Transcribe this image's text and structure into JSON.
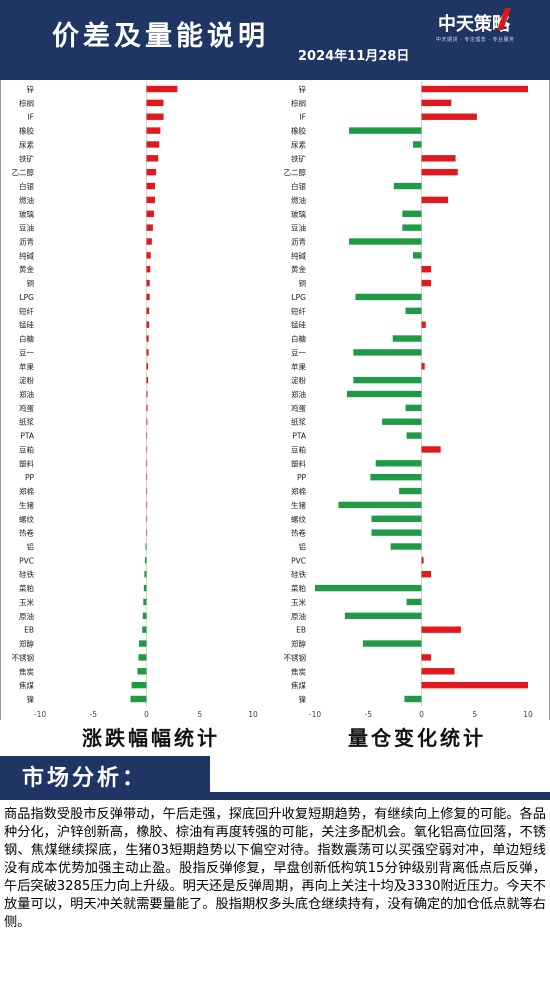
{
  "header": {
    "title": "价差及量能说明",
    "date": "2024年11月28日",
    "logo": "中天策略",
    "logo_sub": "中天期货 · 专注理念 · 专业服务"
  },
  "colors": {
    "up": "#e0191e",
    "down": "#1f9a45",
    "navy": "#1f3563"
  },
  "chart_data": [
    {
      "type": "bar",
      "orientation": "horizontal",
      "title": "涨跌幅幅统计",
      "xlim": [
        -10,
        10
      ],
      "xticks": [
        -10,
        -5,
        0,
        5,
        10
      ],
      "categories": [
        "锌",
        "棕榈",
        "IF",
        "橡胶",
        "尿素",
        "铁矿",
        "乙二醇",
        "白银",
        "燃油",
        "玻璃",
        "豆油",
        "沥青",
        "纯碱",
        "黄金",
        "铜",
        "LPG",
        "短纤",
        "锰硅",
        "白糖",
        "豆一",
        "苹果",
        "淀粉",
        "郑油",
        "鸡蛋",
        "纸浆",
        "PTA",
        "豆粕",
        "塑料",
        "PP",
        "郑棉",
        "生猪",
        "螺纹",
        "热卷",
        "铝",
        "PVC",
        "硅铁",
        "菜粕",
        "玉米",
        "原油",
        "EB",
        "郑醇",
        "不锈钢",
        "焦炭",
        "焦煤",
        "镍"
      ],
      "values": [
        2.9,
        1.6,
        1.6,
        1.3,
        1.2,
        1.1,
        0.9,
        0.8,
        0.8,
        0.7,
        0.6,
        0.5,
        0.4,
        0.35,
        0.3,
        0.3,
        0.25,
        0.25,
        0.2,
        0.2,
        0.15,
        0.15,
        0.1,
        0.1,
        0.08,
        0.05,
        0.05,
        0.05,
        0.03,
        0.02,
        0.0,
        0.0,
        0.0,
        -0.1,
        -0.15,
        -0.2,
        -0.25,
        -0.3,
        -0.35,
        -0.4,
        -0.7,
        -0.75,
        -0.85,
        -1.4,
        -1.5
      ]
    },
    {
      "type": "bar",
      "orientation": "horizontal",
      "title": "量仓变化统计",
      "xlim": [
        -10,
        10
      ],
      "xticks": [
        -10,
        -5,
        0,
        5,
        10
      ],
      "categories": [
        "锌",
        "棕榈",
        "IF",
        "橡胶",
        "尿素",
        "铁矿",
        "乙二醇",
        "白银",
        "燃油",
        "玻璃",
        "豆油",
        "沥青",
        "纯碱",
        "黄金",
        "铜",
        "LPG",
        "短纤",
        "锰硅",
        "白糖",
        "豆一",
        "苹果",
        "淀粉",
        "郑油",
        "鸡蛋",
        "纸浆",
        "PTA",
        "豆粕",
        "塑料",
        "PP",
        "郑棉",
        "生猪",
        "螺纹",
        "热卷",
        "铝",
        "PVC",
        "硅铁",
        "菜粕",
        "玉米",
        "原油",
        "EB",
        "郑醇",
        "不锈钢",
        "焦炭",
        "焦煤",
        "镍"
      ],
      "values": [
        10,
        2.8,
        5.2,
        -6.8,
        -0.8,
        3.2,
        3.4,
        -2.6,
        2.5,
        -1.8,
        -1.8,
        -6.8,
        -0.8,
        0.9,
        0.9,
        -6.2,
        -1.5,
        0.4,
        -2.7,
        -6.4,
        0.3,
        -6.4,
        -7.0,
        -1.5,
        -3.7,
        -1.4,
        1.8,
        -4.3,
        -4.8,
        -2.1,
        -7.8,
        -4.7,
        -4.7,
        -2.9,
        0.2,
        0.9,
        -10,
        -1.4,
        -7.2,
        3.7,
        -5.5,
        0.9,
        3.1,
        10,
        -1.6
      ]
    }
  ],
  "section": {
    "title": "市场分析："
  },
  "analysis": {
    "text": "商品指数受股市反弹带动，午后走强，探底回升收复短期趋势，有继续向上修复的可能。各品种分化，沪锌创新高，橡胶、棕油有再度转强的可能，关注多配机会。氧化铝高位回落，不锈钢、焦煤继续探底，生猪03短期趋势以下偏空对待。指数震荡可以买强空弱对冲，单边短线没有成本优势加强主动止盈。股指反弹修复，早盘创新低构筑15分钟级别背离低点后反弹，午后突破3285压力向上升级。明天还是反弹周期，再向上关注十均及3330附近压力。今天不放量可以，明天冲关就需要量能了。股指期权多头底仓继续持有，没有确定的加仓低点就等右侧。"
  }
}
